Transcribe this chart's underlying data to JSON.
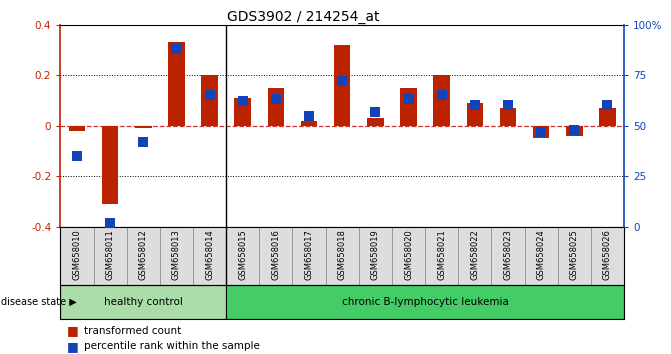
{
  "title": "GDS3902 / 214254_at",
  "samples": [
    "GSM658010",
    "GSM658011",
    "GSM658012",
    "GSM658013",
    "GSM658014",
    "GSM658015",
    "GSM658016",
    "GSM658017",
    "GSM658018",
    "GSM658019",
    "GSM658020",
    "GSM658021",
    "GSM658022",
    "GSM658023",
    "GSM658024",
    "GSM658025",
    "GSM658026"
  ],
  "red_values": [
    -0.02,
    -0.31,
    -0.01,
    0.33,
    0.2,
    0.11,
    0.15,
    0.02,
    0.32,
    0.03,
    0.15,
    0.2,
    0.09,
    0.07,
    -0.05,
    -0.04,
    0.07
  ],
  "blue_pct": [
    35,
    2,
    42,
    88,
    65,
    62,
    63,
    55,
    72,
    57,
    63,
    65,
    60,
    60,
    47,
    48,
    60
  ],
  "healthy_count": 5,
  "ylim_left": [
    -0.4,
    0.4
  ],
  "ylim_right": [
    0,
    100
  ],
  "yticks_left": [
    -0.4,
    -0.2,
    0.0,
    0.2,
    0.4
  ],
  "yticks_right": [
    0,
    25,
    50,
    75,
    100
  ],
  "red_color": "#bb2200",
  "blue_color": "#1144bb",
  "healthy_bg": "#aaddaa",
  "leukemia_bg": "#44cc66",
  "bar_width": 0.5,
  "blue_square_size": 55
}
